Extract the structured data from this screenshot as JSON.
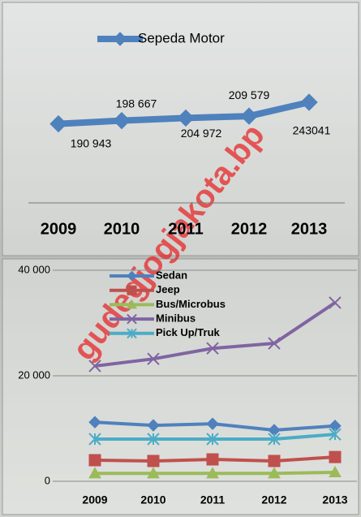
{
  "chart_data": [
    {
      "type": "line",
      "categories": [
        "2009",
        "2010",
        "2011",
        "2012",
        "2013"
      ],
      "series": [
        {
          "name": "Sepeda Motor",
          "color": "#4f81bd",
          "marker": "diamond",
          "values": [
            190943,
            198667,
            204972,
            209579,
            243041
          ],
          "value_labels": [
            "190 943",
            "198 667",
            "204 972",
            "209 579",
            "243041"
          ]
        }
      ]
    },
    {
      "type": "line",
      "categories": [
        "2009",
        "2010",
        "2011",
        "2012",
        "2013"
      ],
      "ylim": [
        0,
        40000
      ],
      "yticks": [
        0,
        {
          "value": 20000,
          "label": "20 000"
        },
        {
          "value": 40000,
          "label": "40 000"
        }
      ],
      "grid": true,
      "series": [
        {
          "name": "Sedan",
          "color": "#4f81bd",
          "marker": "diamond",
          "values": [
            11200,
            10600,
            10900,
            9700,
            10500
          ]
        },
        {
          "name": "Jeep",
          "color": "#c0504d",
          "marker": "square",
          "values": [
            4000,
            3850,
            4150,
            3850,
            4600
          ]
        },
        {
          "name": "Bus/Microbus",
          "color": "#9bbb59",
          "marker": "triangle",
          "values": [
            1500,
            1500,
            1500,
            1500,
            1700
          ]
        },
        {
          "name": "Minibus",
          "color": "#8064a2",
          "marker": "x",
          "values": [
            21850,
            23200,
            25200,
            26150,
            33850
          ]
        },
        {
          "name": "Pick Up/Truk",
          "color": "#4bacc6",
          "marker": "star",
          "values": [
            8000,
            8000,
            8000,
            8000,
            8900
          ]
        }
      ]
    }
  ],
  "watermark": "gudegjogjakota.bp"
}
